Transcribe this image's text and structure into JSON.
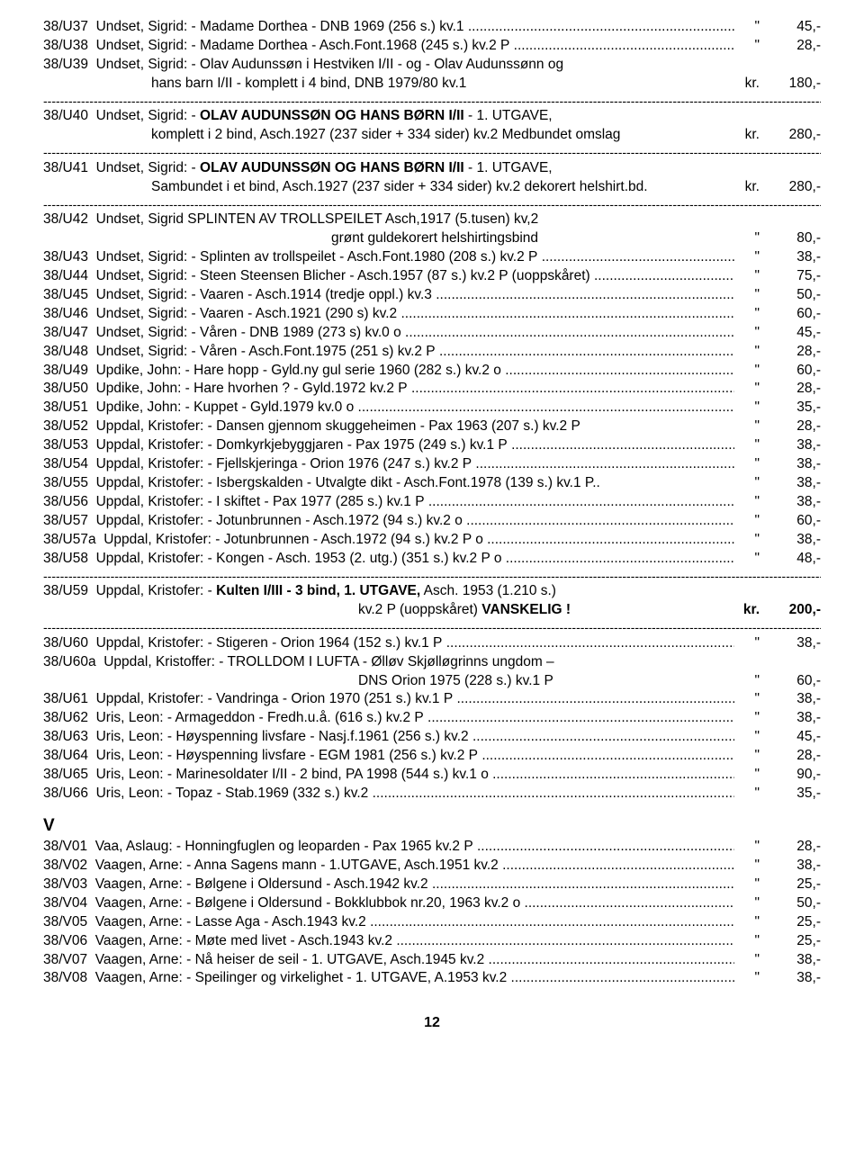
{
  "page_number": "12",
  "separator_char": "-",
  "dot_char": ".",
  "section_letter": "V",
  "entries": [
    {
      "code": "38/U37",
      "text": "Undset, Sigrid: - Madame Dorthea - DNB 1969 (256 s.) kv.1",
      "cur": "\"",
      "price": "45,-",
      "dots": true
    },
    {
      "code": "38/U38",
      "text": "Undset, Sigrid: - Madame Dorthea - Asch.Font.1968 (245 s.) kv.2 P",
      "cur": "\"",
      "price": "28,-",
      "dots": true
    },
    {
      "code": "38/U39",
      "text": "Undset, Sigrid: - Olav Audunssøn i Hestviken I/II - og - Olav Audunssønn og",
      "cur": "",
      "price": "",
      "dots": false
    },
    {
      "code": "",
      "text": "hans barn I/II - komplett i 4 bind, DNB 1979/80 kv.1",
      "cur": "kr.",
      "price": "180,-",
      "dots": false,
      "cont": true
    },
    {
      "sep": true
    },
    {
      "code": "38/U40",
      "text": "Undset, Sigrid: - <b>OLAV AUDUNSSØN OG HANS BØRN I/II</b> - 1. UTGAVE,",
      "cur": "",
      "price": "",
      "dots": false
    },
    {
      "code": "",
      "text": "komplett i 2 bind, Asch.1927 (237 sider + 334 sider) kv.2 Medbundet omslag",
      "cur": "kr.",
      "price": "280,-",
      "dots": false,
      "cont": true
    },
    {
      "sep": true
    },
    {
      "code": "38/U41",
      "text": "Undset, Sigrid: - <b>OLAV AUDUNSSØN OG HANS BØRN I/II</b> - 1. UTGAVE,",
      "cur": "",
      "price": "",
      "dots": false
    },
    {
      "code": "",
      "text": "Sambundet i et bind, Asch.1927 (237 sider + 334 sider) kv.2 dekorert helshirt.bd.",
      "cur": "kr.",
      "price": "280,-",
      "dots": false,
      "cont": true
    },
    {
      "sep": true
    },
    {
      "code": "38/U42",
      "text": "Undset, Sigrid SPLINTEN AV TROLLSPEILET Asch,1917 (5.tusen) kv,2",
      "cur": "",
      "price": "",
      "dots": false
    },
    {
      "code": "",
      "text": "grønt guldekorert helshirtingsbind",
      "cur": "\"",
      "price": "80,-",
      "dots": false,
      "cont": true,
      "cont_indent": 320
    },
    {
      "code": "38/U43",
      "text": "Undset, Sigrid: - Splinten av trollspeilet - Asch.Font.1980 (208 s.) kv.2 P",
      "cur": "\"",
      "price": "38,-",
      "dots": true
    },
    {
      "code": "38/U44",
      "text": "Undset, Sigrid: - Steen Steensen Blicher - Asch.1957 (87 s.) kv.2 P (uoppskåret)",
      "cur": "\"",
      "price": "75,-",
      "dots": true
    },
    {
      "code": "38/U45",
      "text": "Undset, Sigrid: - Vaaren - Asch.1914 (tredje oppl.) kv.3",
      "cur": "\"",
      "price": "50,-",
      "dots": true
    },
    {
      "code": "38/U46",
      "text": "Undset, Sigrid: - Vaaren - Asch.1921 (290 s) kv.2",
      "cur": "\"",
      "price": "60,-",
      "dots": true
    },
    {
      "code": "38/U47",
      "text": "Undset, Sigrid: - Våren - DNB 1989 (273 s) kv.0 o",
      "cur": "\"",
      "price": "45,-",
      "dots": true
    },
    {
      "code": "38/U48",
      "text": "Undset, Sigrid: - Våren - Asch.Font.1975 (251 s) kv.2 P",
      "cur": "\"",
      "price": "28,-",
      "dots": true
    },
    {
      "code": "38/U49",
      "text": "Updike, John: - Hare hopp - Gyld.ny gul serie 1960 (282 s.) kv.2 o",
      "cur": "\"",
      "price": "60,-",
      "dots": true
    },
    {
      "code": "38/U50",
      "text": "Updike, John: - Hare hvorhen ? - Gyld.1972 kv.2 P",
      "cur": "\"",
      "price": "28,-",
      "dots": true
    },
    {
      "code": "38/U51",
      "text": "Updike, John: - Kuppet - Gyld.1979 kv.0 o",
      "cur": "\"",
      "price": "35,-",
      "dots": true
    },
    {
      "code": "38/U52",
      "text": "Uppdal, Kristofer: - Dansen gjennom skuggeheimen - Pax 1963 (207 s.) kv.2 P",
      "cur": "\"",
      "price": "28,-",
      "dots": false
    },
    {
      "code": "38/U53",
      "text": "Uppdal, Kristofer: - Domkyrkjebyggjaren - Pax 1975 (249 s.) kv.1 P",
      "cur": "\"",
      "price": "38,-",
      "dots": true
    },
    {
      "code": "38/U54",
      "text": "Uppdal, Kristofer: - Fjellskjeringa - Orion 1976 (247 s.) kv.2 P",
      "cur": "\"",
      "price": "38,-",
      "dots": true
    },
    {
      "code": "38/U55",
      "text": "Uppdal, Kristofer: - Isbergskalden - Utvalgte dikt - Asch.Font.1978 (139 s.) kv.1 P..",
      "cur": "\"",
      "price": "38,-",
      "dots": false
    },
    {
      "code": "38/U56",
      "text": "Uppdal, Kristofer: - I skiftet - Pax 1977 (285 s.) kv.1 P",
      "cur": "\"",
      "price": "38,-",
      "dots": true
    },
    {
      "code": "38/U57",
      "text": "Uppdal, Kristofer: - Jotunbrunnen - Asch.1972 (94 s.) kv.2 o",
      "cur": "\"",
      "price": "60,-",
      "dots": true
    },
    {
      "code": "38/U57a",
      "text": "Uppdal, Kristofer: - Jotunbrunnen - Asch.1972 (94 s.) kv.2 P o",
      "cur": "\"",
      "price": "38,-",
      "dots": true
    },
    {
      "code": "38/U58",
      "text": "Uppdal, Kristofer: - Kongen - Asch. 1953 (2. utg.) (351 s.) kv.2 P o",
      "cur": "\"",
      "price": "48,-",
      "dots": true
    },
    {
      "sep": true
    },
    {
      "code": "38/U59",
      "text": "Uppdal, Kristofer: - <b>Kulten I/III - 3 bind, 1. UTGAVE,</b> Asch. 1953 (1.210 s.)",
      "cur": "",
      "price": "",
      "dots": false
    },
    {
      "code": "",
      "text": "kv.2 P (uoppskåret) <b>VANSKELIG !</b>",
      "cur": "<b>kr.</b>",
      "price": "<b>200,-</b>",
      "dots": false,
      "cont": true,
      "cont_indent": 350
    },
    {
      "sep": true
    },
    {
      "code": "38/U60",
      "text": "Uppdal, Kristofer: - Stigeren - Orion 1964 (152 s.) kv.1 P",
      "cur": "\"",
      "price": "38,-",
      "dots": true
    },
    {
      "code": "38/U60a",
      "text": "Uppdal, Kristoffer: - TROLLDOM I LUFTA - Ølløv Skjølløgrinns ungdom –",
      "cur": "",
      "price": "",
      "dots": false
    },
    {
      "code": "",
      "text": "DNS Orion 1975 (228 s.) kv.1 P",
      "cur": "\"",
      "price": "60,-",
      "dots": false,
      "cont": true,
      "cont_indent": 350
    },
    {
      "code": "38/U61",
      "text": "Uppdal, Kristofer: - Vandringa - Orion 1970 (251 s.) kv.1 P",
      "cur": "\"",
      "price": "38,-",
      "dots": true
    },
    {
      "code": "38/U62",
      "text": "Uris, Leon: - Armageddon - Fredh.u.å. (616 s.) kv.2 P",
      "cur": "\"",
      "price": "38,-",
      "dots": true
    },
    {
      "code": "38/U63",
      "text": "Uris, Leon: - Høyspenning livsfare - Nasj.f.1961 (256 s.) kv.2",
      "cur": "\"",
      "price": "45,-",
      "dots": true
    },
    {
      "code": "38/U64",
      "text": "Uris, Leon: - Høyspenning livsfare - EGM 1981 (256 s.) kv.2 P",
      "cur": "\"",
      "price": "28,-",
      "dots": true
    },
    {
      "code": "38/U65",
      "text": "Uris, Leon: - Marinesoldater I/II - 2 bind, PA 1998 (544 s.) kv.1 o",
      "cur": "\"",
      "price": "90,-",
      "dots": true
    },
    {
      "code": "38/U66",
      "text": "Uris, Leon: - Topaz - Stab.1969 (332 s.) kv.2",
      "cur": "\"",
      "price": "35,-",
      "dots": true
    },
    {
      "section": true
    },
    {
      "code": "38/V01",
      "text": "Vaa, Aslaug: - Honningfuglen og leoparden - Pax 1965 kv.2 P",
      "cur": "\"",
      "price": "28,-",
      "dots": true
    },
    {
      "code": "38/V02",
      "text": "Vaagen, Arne: - Anna Sagens mann - 1.UTGAVE, Asch.1951 kv.2",
      "cur": "\"",
      "price": "38,-",
      "dots": true
    },
    {
      "code": "38/V03",
      "text": "Vaagen, Arne: - Bølgene i Oldersund - Asch.1942 kv.2",
      "cur": "\"",
      "price": "25,-",
      "dots": true
    },
    {
      "code": "38/V04",
      "text": "Vaagen, Arne: - Bølgene i Oldersund - Bokklubbok nr.20, 1963 kv.2 o",
      "cur": "\"",
      "price": "50,-",
      "dots": true
    },
    {
      "code": "38/V05",
      "text": "Vaagen, Arne: - Lasse Aga - Asch.1943 kv.2",
      "cur": "\"",
      "price": "25,-",
      "dots": true
    },
    {
      "code": "38/V06",
      "text": "Vaagen, Arne: - Møte med livet - Asch.1943 kv.2",
      "cur": "\"",
      "price": "25,-",
      "dots": true
    },
    {
      "code": "38/V07",
      "text": "Vaagen, Arne: - Nå heiser de seil - 1. UTGAVE, Asch.1945 kv.2",
      "cur": "\"",
      "price": "38,-",
      "dots": true
    },
    {
      "code": "38/V08",
      "text": "Vaagen, Arne: - Speilinger og virkelighet - 1. UTGAVE, A.1953 kv.2",
      "cur": "\"",
      "price": "38,-",
      "dots": true
    }
  ]
}
